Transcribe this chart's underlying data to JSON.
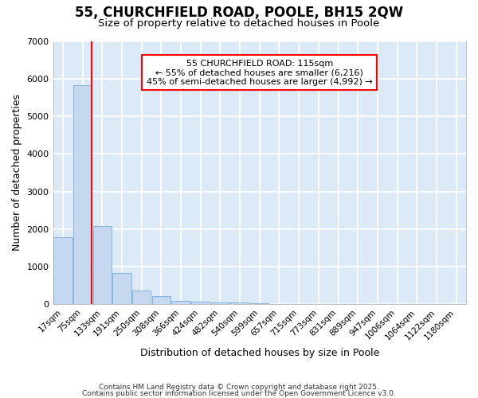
{
  "title": "55, CHURCHFIELD ROAD, POOLE, BH15 2QW",
  "subtitle": "Size of property relative to detached houses in Poole",
  "xlabel": "Distribution of detached houses by size in Poole",
  "ylabel": "Number of detached properties",
  "bar_color": "#c5d8f0",
  "bar_edge_color": "#7aadd4",
  "plot_bg_color": "#dce9f7",
  "fig_bg_color": "#ffffff",
  "grid_color": "#ffffff",
  "categories": [
    "17sqm",
    "75sqm",
    "133sqm",
    "191sqm",
    "250sqm",
    "308sqm",
    "366sqm",
    "424sqm",
    "482sqm",
    "540sqm",
    "599sqm",
    "657sqm",
    "715sqm",
    "773sqm",
    "831sqm",
    "889sqm",
    "947sqm",
    "1006sqm",
    "1064sqm",
    "1122sqm",
    "1180sqm"
  ],
  "values": [
    1780,
    5820,
    2080,
    840,
    360,
    220,
    100,
    70,
    55,
    40,
    25,
    15,
    10,
    2,
    1,
    0,
    0,
    0,
    0,
    0,
    0
  ],
  "ylim": [
    0,
    7000
  ],
  "yticks": [
    0,
    1000,
    2000,
    3000,
    4000,
    5000,
    6000,
    7000
  ],
  "red_line_x": 1.48,
  "annotation_title": "55 CHURCHFIELD ROAD: 115sqm",
  "annotation_line2": "← 55% of detached houses are smaller (6,216)",
  "annotation_line3": "45% of semi-detached houses are larger (4,992) →",
  "footer1": "Contains HM Land Registry data © Crown copyright and database right 2025.",
  "footer2": "Contains public sector information licensed under the Open Government Licence v3.0."
}
